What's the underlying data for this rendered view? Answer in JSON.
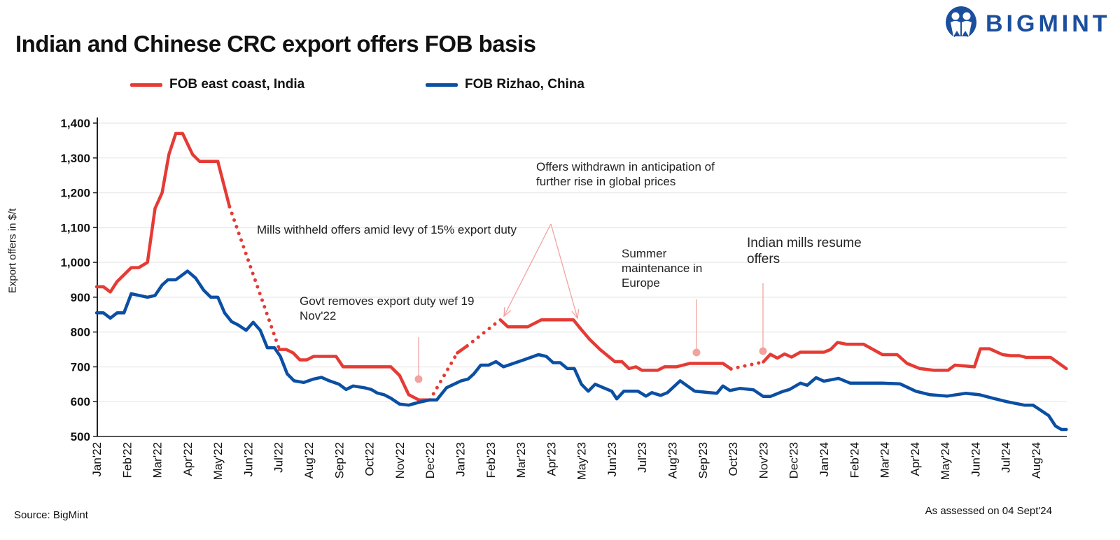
{
  "brand": {
    "name": "BIGMINT",
    "color": "#1b4f9e"
  },
  "footer": {
    "source": "Source: BigMint",
    "assessed": "As assessed on 04 Sept'24"
  },
  "chart_data": {
    "type": "line",
    "title": "Indian and Chinese CRC export offers FOB basis",
    "ylabel": "Export offers in $/t",
    "xlabel": "",
    "ylim": [
      500,
      1400
    ],
    "yticks": [
      500,
      600,
      700,
      800,
      900,
      1000,
      1100,
      1200,
      1300,
      1400
    ],
    "ytick_labels": [
      "500",
      "600",
      "700",
      "800",
      "900",
      "1,000",
      "1,100",
      "1,200",
      "1,300",
      "1,400"
    ],
    "xlim": [
      "2022-01-01",
      "2024-09-01"
    ],
    "xtick_labels": [
      "Jan'22",
      "Feb'22",
      "Mar'22",
      "Apr'22",
      "May'22",
      "Jun'22",
      "Jul'22",
      "Aug'22",
      "Sep'22",
      "Oct'22",
      "Nov'22",
      "Dec'22",
      "Jan'23",
      "Feb'23",
      "Mar'23",
      "Apr'23",
      "May'23",
      "Jun'23",
      "Jul'23",
      "Aug'23",
      "Sep'23",
      "Oct'23",
      "Nov'23",
      "Dec'23",
      "Jan'24",
      "Feb'24",
      "Mar'24",
      "Apr'24",
      "May'24",
      "Jun'24",
      "Jul'24",
      "Aug'24"
    ],
    "grid": true,
    "legend_position": "top-left",
    "series": [
      {
        "name": "FOB east coast, India",
        "color": "#e53b35",
        "segments": [
          {
            "style": "solid",
            "points": [
              [
                "2022-01-01",
                930
              ],
              [
                "2022-01-08",
                930
              ],
              [
                "2022-01-15",
                915
              ],
              [
                "2022-01-22",
                945
              ],
              [
                "2022-02-05",
                985
              ],
              [
                "2022-02-12",
                985
              ],
              [
                "2022-02-20",
                1000
              ],
              [
                "2022-02-27",
                1155
              ],
              [
                "2022-03-06",
                1200
              ],
              [
                "2022-03-13",
                1310
              ],
              [
                "2022-03-20",
                1370
              ],
              [
                "2022-03-27",
                1370
              ],
              [
                "2022-04-06",
                1310
              ],
              [
                "2022-04-13",
                1290
              ],
              [
                "2022-05-01",
                1290
              ],
              [
                "2022-05-13",
                1160
              ]
            ]
          },
          {
            "style": "dotted",
            "points": [
              [
                "2022-05-13",
                1160
              ],
              [
                "2022-07-02",
                750
              ]
            ]
          },
          {
            "style": "solid",
            "points": [
              [
                "2022-07-02",
                750
              ],
              [
                "2022-07-09",
                750
              ],
              [
                "2022-07-16",
                740
              ],
              [
                "2022-07-23",
                720
              ],
              [
                "2022-07-30",
                720
              ],
              [
                "2022-08-06",
                730
              ],
              [
                "2022-08-29",
                730
              ],
              [
                "2022-09-05",
                700
              ],
              [
                "2022-10-23",
                700
              ],
              [
                "2022-11-01",
                675
              ],
              [
                "2022-11-10",
                620
              ],
              [
                "2022-11-20",
                605
              ],
              [
                "2022-12-01",
                605
              ]
            ]
          },
          {
            "style": "dotted",
            "points": [
              [
                "2022-12-01",
                605
              ],
              [
                "2022-12-29",
                740
              ]
            ]
          },
          {
            "style": "solid",
            "points": [
              [
                "2022-12-29",
                740
              ],
              [
                "2023-01-08",
                760
              ]
            ]
          },
          {
            "style": "dotted",
            "points": [
              [
                "2023-01-08",
                760
              ],
              [
                "2023-02-10",
                835
              ]
            ]
          },
          {
            "style": "solid",
            "points": [
              [
                "2023-02-10",
                835
              ],
              [
                "2023-02-17",
                815
              ],
              [
                "2023-03-08",
                815
              ],
              [
                "2023-03-15",
                825
              ],
              [
                "2023-03-22",
                835
              ],
              [
                "2023-04-23",
                835
              ],
              [
                "2023-04-30",
                810
              ],
              [
                "2023-05-09",
                780
              ],
              [
                "2023-05-20",
                750
              ],
              [
                "2023-06-04",
                715
              ],
              [
                "2023-06-11",
                715
              ],
              [
                "2023-06-18",
                695
              ],
              [
                "2023-06-25",
                700
              ],
              [
                "2023-07-01",
                690
              ],
              [
                "2023-07-17",
                690
              ],
              [
                "2023-07-24",
                700
              ],
              [
                "2023-08-05",
                700
              ],
              [
                "2023-08-19",
                710
              ],
              [
                "2023-09-21",
                710
              ],
              [
                "2023-09-29",
                694
              ]
            ]
          },
          {
            "style": "dotted",
            "points": [
              [
                "2023-09-29",
                694
              ],
              [
                "2023-11-01",
                714
              ]
            ]
          },
          {
            "style": "solid",
            "points": [
              [
                "2023-11-01",
                714
              ],
              [
                "2023-11-08",
                736
              ],
              [
                "2023-11-15",
                725
              ],
              [
                "2023-11-22",
                737
              ],
              [
                "2023-11-29",
                728
              ],
              [
                "2023-12-08",
                742
              ],
              [
                "2024-01-01",
                742
              ],
              [
                "2024-01-08",
                750
              ],
              [
                "2024-01-15",
                770
              ],
              [
                "2024-01-24",
                765
              ],
              [
                "2024-02-10",
                765
              ],
              [
                "2024-02-28",
                735
              ],
              [
                "2024-03-14",
                735
              ],
              [
                "2024-03-24",
                710
              ],
              [
                "2024-04-06",
                695
              ],
              [
                "2024-04-20",
                690
              ],
              [
                "2024-05-04",
                690
              ],
              [
                "2024-05-11",
                705
              ],
              [
                "2024-05-31",
                700
              ],
              [
                "2024-06-06",
                752
              ],
              [
                "2024-06-15",
                752
              ],
              [
                "2024-06-28",
                735
              ],
              [
                "2024-07-06",
                732
              ],
              [
                "2024-07-15",
                732
              ],
              [
                "2024-07-22",
                727
              ],
              [
                "2024-08-16",
                727
              ],
              [
                "2024-09-01",
                695
              ]
            ]
          }
        ]
      },
      {
        "name": "FOB Rizhao, China",
        "color": "#0b4fa3",
        "segments": [
          {
            "style": "solid",
            "points": [
              [
                "2022-01-01",
                855
              ],
              [
                "2022-01-08",
                855
              ],
              [
                "2022-01-15",
                840
              ],
              [
                "2022-01-22",
                855
              ],
              [
                "2022-01-29",
                855
              ],
              [
                "2022-02-05",
                910
              ],
              [
                "2022-02-20",
                900
              ],
              [
                "2022-02-27",
                905
              ],
              [
                "2022-03-06",
                935
              ],
              [
                "2022-03-12",
                950
              ],
              [
                "2022-03-20",
                950
              ],
              [
                "2022-04-01",
                975
              ],
              [
                "2022-04-09",
                955
              ],
              [
                "2022-04-17",
                920
              ],
              [
                "2022-04-24",
                900
              ],
              [
                "2022-05-01",
                900
              ],
              [
                "2022-05-08",
                855
              ],
              [
                "2022-05-15",
                830
              ],
              [
                "2022-05-22",
                820
              ],
              [
                "2022-05-30",
                805
              ],
              [
                "2022-06-06",
                828
              ],
              [
                "2022-06-13",
                805
              ],
              [
                "2022-06-20",
                755
              ],
              [
                "2022-06-27",
                755
              ],
              [
                "2022-07-03",
                730
              ],
              [
                "2022-07-10",
                680
              ],
              [
                "2022-07-17",
                660
              ],
              [
                "2022-07-27",
                655
              ],
              [
                "2022-08-06",
                665
              ],
              [
                "2022-08-14",
                670
              ],
              [
                "2022-08-22",
                660
              ],
              [
                "2022-09-01",
                650
              ],
              [
                "2022-09-08",
                635
              ],
              [
                "2022-09-15",
                645
              ],
              [
                "2022-09-26",
                640
              ],
              [
                "2022-10-03",
                635
              ],
              [
                "2022-10-09",
                625
              ],
              [
                "2022-10-16",
                620
              ],
              [
                "2022-10-23",
                610
              ],
              [
                "2022-11-01",
                593
              ],
              [
                "2022-11-10",
                590
              ],
              [
                "2022-11-20",
                598
              ],
              [
                "2022-12-01",
                605
              ],
              [
                "2022-12-08",
                605
              ],
              [
                "2022-12-18",
                640
              ],
              [
                "2023-01-02",
                660
              ],
              [
                "2023-01-09",
                665
              ],
              [
                "2023-01-15",
                680
              ],
              [
                "2023-01-22",
                705
              ],
              [
                "2023-01-30",
                705
              ],
              [
                "2023-02-06",
                715
              ],
              [
                "2023-02-13",
                700
              ],
              [
                "2023-03-04",
                720
              ],
              [
                "2023-03-19",
                735
              ],
              [
                "2023-03-27",
                730
              ],
              [
                "2023-04-03",
                712
              ],
              [
                "2023-04-10",
                712
              ],
              [
                "2023-04-17",
                695
              ],
              [
                "2023-04-24",
                695
              ],
              [
                "2023-05-01",
                650
              ],
              [
                "2023-05-08",
                630
              ],
              [
                "2023-05-15",
                650
              ],
              [
                "2023-06-01",
                630
              ],
              [
                "2023-06-06",
                608
              ],
              [
                "2023-06-13",
                630
              ],
              [
                "2023-06-27",
                630
              ],
              [
                "2023-07-05",
                616
              ],
              [
                "2023-07-11",
                626
              ],
              [
                "2023-07-20",
                618
              ],
              [
                "2023-07-27",
                626
              ],
              [
                "2023-08-09",
                660
              ],
              [
                "2023-08-24",
                630
              ],
              [
                "2023-09-15",
                624
              ],
              [
                "2023-09-21",
                645
              ],
              [
                "2023-09-28",
                632
              ],
              [
                "2023-10-08",
                638
              ],
              [
                "2023-10-22",
                634
              ],
              [
                "2023-11-01",
                615
              ],
              [
                "2023-11-08",
                615
              ],
              [
                "2023-11-20",
                629
              ],
              [
                "2023-11-27",
                635
              ],
              [
                "2023-12-08",
                653
              ],
              [
                "2023-12-15",
                647
              ],
              [
                "2023-12-24",
                669
              ],
              [
                "2024-01-01",
                659
              ],
              [
                "2024-01-16",
                667
              ],
              [
                "2024-01-28",
                653
              ],
              [
                "2024-02-28",
                653
              ],
              [
                "2024-03-17",
                651
              ],
              [
                "2024-04-02",
                630
              ],
              [
                "2024-04-16",
                620
              ],
              [
                "2024-05-03",
                616
              ],
              [
                "2024-05-22",
                624
              ],
              [
                "2024-06-05",
                620
              ],
              [
                "2024-06-18",
                610
              ],
              [
                "2024-07-02",
                600
              ],
              [
                "2024-07-20",
                590
              ],
              [
                "2024-07-29",
                590
              ],
              [
                "2024-08-14",
                560
              ],
              [
                "2024-08-21",
                530
              ],
              [
                "2024-08-27",
                520
              ],
              [
                "2024-09-01",
                520
              ]
            ]
          }
        ]
      }
    ],
    "annotations": [
      {
        "text": "Mills withheld offers amid levy of 15% export duty"
      },
      {
        "text": "Govt removes export duty wef 19 Nov'22"
      },
      {
        "text": "Offers withdrawn in anticipation of further rise in global prices"
      },
      {
        "text": "Summer maintenance in Europe"
      },
      {
        "text": "Indian mills resume offers"
      }
    ],
    "annotation_color": "#f1a3a0"
  }
}
